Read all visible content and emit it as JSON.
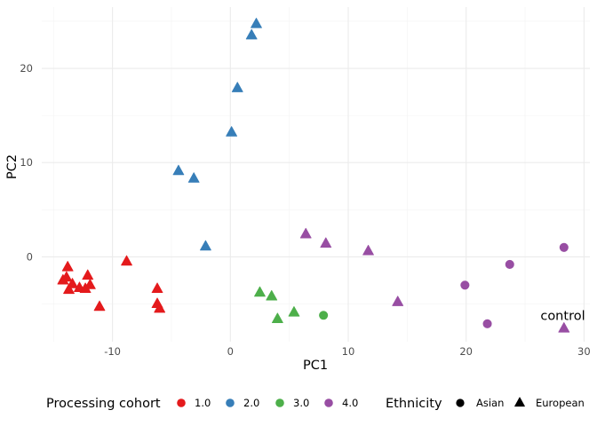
{
  "chart_data": {
    "type": "scatter",
    "xlabel": "PC1",
    "ylabel": "PC2",
    "xlim": [
      -16,
      30.5
    ],
    "ylim": [
      -9,
      26.5
    ],
    "x_ticks": [
      -10,
      0,
      10,
      20,
      30
    ],
    "y_ticks": [
      0,
      10,
      20
    ],
    "grid": true,
    "legend_placement": "bottom",
    "colors": {
      "1.0": "#E41A1C",
      "2.0": "#377EB8",
      "3.0": "#4DAF4A",
      "4.0": "#984EA3"
    },
    "legend": {
      "cohort_title": "Processing cohort",
      "cohort_labels": [
        "1.0",
        "2.0",
        "3.0",
        "4.0"
      ],
      "ethnicity_title": "Ethnicity",
      "ethnicity_labels": [
        "Asian",
        "European"
      ]
    },
    "annotations": [
      {
        "text": "control",
        "x": 28.2,
        "y": -6.7
      }
    ],
    "points": [
      {
        "x": -14.2,
        "y": -2.5,
        "cohort": "1.0",
        "ethnicity": "European"
      },
      {
        "x": -13.8,
        "y": -1.1,
        "cohort": "1.0",
        "ethnicity": "European"
      },
      {
        "x": -13.9,
        "y": -2.2,
        "cohort": "1.0",
        "ethnicity": "European"
      },
      {
        "x": -13.7,
        "y": -3.5,
        "cohort": "1.0",
        "ethnicity": "European"
      },
      {
        "x": -13.4,
        "y": -2.9,
        "cohort": "1.0",
        "ethnicity": "European"
      },
      {
        "x": -12.8,
        "y": -3.3,
        "cohort": "1.0",
        "ethnicity": "European"
      },
      {
        "x": -12.3,
        "y": -3.4,
        "cohort": "1.0",
        "ethnicity": "European"
      },
      {
        "x": -12.1,
        "y": -2.0,
        "cohort": "1.0",
        "ethnicity": "European"
      },
      {
        "x": -11.9,
        "y": -3.0,
        "cohort": "1.0",
        "ethnicity": "European"
      },
      {
        "x": -11.1,
        "y": -5.3,
        "cohort": "1.0",
        "ethnicity": "European"
      },
      {
        "x": -8.8,
        "y": -0.5,
        "cohort": "1.0",
        "ethnicity": "European"
      },
      {
        "x": -6.2,
        "y": -3.4,
        "cohort": "1.0",
        "ethnicity": "European"
      },
      {
        "x": -6.2,
        "y": -5.0,
        "cohort": "1.0",
        "ethnicity": "European"
      },
      {
        "x": -6.0,
        "y": -5.5,
        "cohort": "1.0",
        "ethnicity": "European"
      },
      {
        "x": -4.4,
        "y": 9.1,
        "cohort": "2.0",
        "ethnicity": "European"
      },
      {
        "x": -3.1,
        "y": 8.3,
        "cohort": "2.0",
        "ethnicity": "European"
      },
      {
        "x": -2.1,
        "y": 1.1,
        "cohort": "2.0",
        "ethnicity": "European"
      },
      {
        "x": 0.1,
        "y": 13.2,
        "cohort": "2.0",
        "ethnicity": "European"
      },
      {
        "x": 0.6,
        "y": 17.9,
        "cohort": "2.0",
        "ethnicity": "European"
      },
      {
        "x": 1.8,
        "y": 23.5,
        "cohort": "2.0",
        "ethnicity": "European"
      },
      {
        "x": 2.2,
        "y": 24.7,
        "cohort": "2.0",
        "ethnicity": "European"
      },
      {
        "x": 2.5,
        "y": -3.8,
        "cohort": "3.0",
        "ethnicity": "European"
      },
      {
        "x": 3.5,
        "y": -4.2,
        "cohort": "3.0",
        "ethnicity": "European"
      },
      {
        "x": 4.0,
        "y": -6.6,
        "cohort": "3.0",
        "ethnicity": "European"
      },
      {
        "x": 5.4,
        "y": -5.9,
        "cohort": "3.0",
        "ethnicity": "European"
      },
      {
        "x": 7.9,
        "y": -6.2,
        "cohort": "3.0",
        "ethnicity": "Asian"
      },
      {
        "x": 6.4,
        "y": 2.4,
        "cohort": "4.0",
        "ethnicity": "European"
      },
      {
        "x": 8.1,
        "y": 1.4,
        "cohort": "4.0",
        "ethnicity": "European"
      },
      {
        "x": 11.7,
        "y": 0.6,
        "cohort": "4.0",
        "ethnicity": "European"
      },
      {
        "x": 14.2,
        "y": -4.8,
        "cohort": "4.0",
        "ethnicity": "European"
      },
      {
        "x": 19.9,
        "y": -3.0,
        "cohort": "4.0",
        "ethnicity": "Asian"
      },
      {
        "x": 21.8,
        "y": -7.1,
        "cohort": "4.0",
        "ethnicity": "Asian"
      },
      {
        "x": 23.7,
        "y": -0.8,
        "cohort": "4.0",
        "ethnicity": "Asian"
      },
      {
        "x": 28.3,
        "y": 1.0,
        "cohort": "4.0",
        "ethnicity": "Asian"
      },
      {
        "x": 28.3,
        "y": -7.6,
        "cohort": "4.0",
        "ethnicity": "European"
      }
    ]
  }
}
